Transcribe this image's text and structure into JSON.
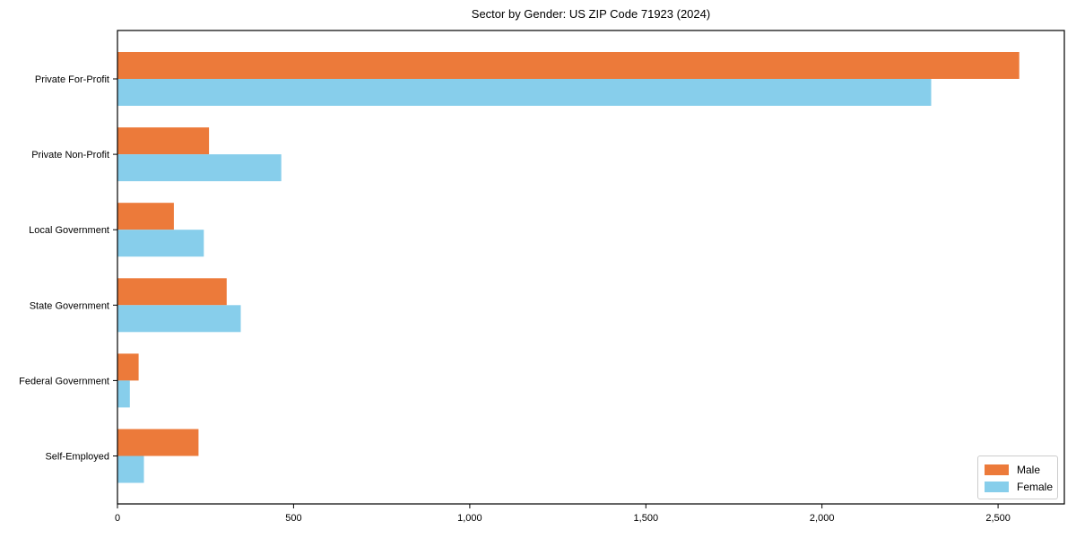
{
  "chart_data": {
    "type": "bar",
    "orientation": "horizontal",
    "title": "Sector by Gender: US ZIP Code 71923 (2024)",
    "categories": [
      "Private For-Profit",
      "Private Non-Profit",
      "Local Government",
      "State Government",
      "Federal Government",
      "Self-Employed"
    ],
    "series": [
      {
        "name": "Male",
        "color": "#ec7a3a",
        "values": [
          2560,
          260,
          160,
          310,
          60,
          230
        ]
      },
      {
        "name": "Female",
        "color": "#87ceeb",
        "values": [
          2310,
          465,
          245,
          350,
          35,
          75
        ]
      }
    ],
    "xlabel": "",
    "ylabel": "",
    "xlim": [
      0,
      2688
    ],
    "xticks": [
      0,
      500,
      1000,
      1500,
      2000,
      2500
    ],
    "xtick_labels": [
      "0",
      "500",
      "1,000",
      "1,500",
      "2,000",
      "2,500"
    ],
    "grid": false,
    "legend_position": "lower right",
    "frame_color": "#000000",
    "legend_border_color": "#cccccc",
    "background_color": "#ffffff"
  }
}
